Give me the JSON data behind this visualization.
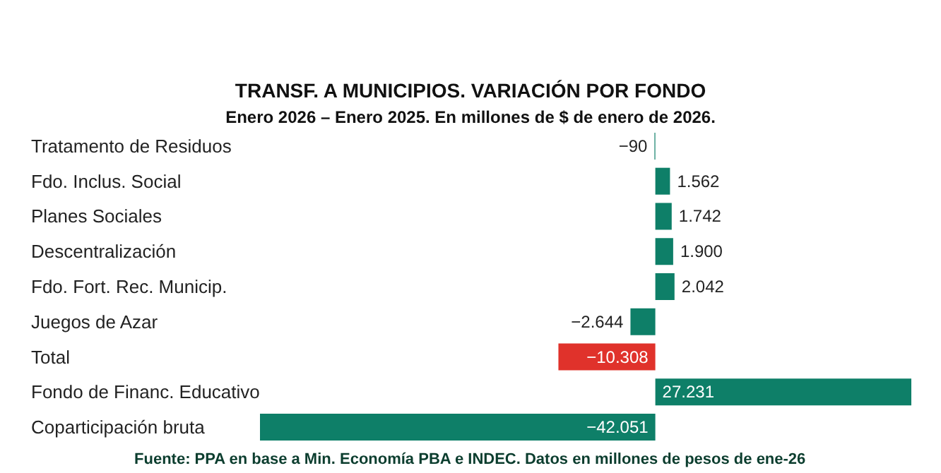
{
  "chart_data": {
    "type": "bar",
    "orientation": "horizontal",
    "title": "TRANSF. A MUNICIPIOS. VARIACIÓN POR FONDO",
    "subtitle": "Enero 2026 – Enero 2025. En millones de $ de enero de 2026.",
    "categories": [
      "Tratamento de Residuos",
      "Fdo. Inclus. Social",
      "Planes Sociales",
      "Descentralización",
      "Fdo. Fort. Rec. Municip.",
      "Juegos de Azar",
      "Total",
      "Fondo de Financ. Educativo",
      "Coparticipación bruta"
    ],
    "values": [
      -90,
      1562,
      1742,
      1900,
      2042,
      -2644,
      -10308,
      27231,
      -42051
    ],
    "colors": [
      "#0e7f68",
      "#0e7f68",
      "#0e7f68",
      "#0e7f68",
      "#0e7f68",
      "#0e7f68",
      "#e0322b",
      "#0e7f68",
      "#0e7f68"
    ],
    "value_labels": [
      "−90",
      "1.562",
      "1.742",
      "1.900",
      "2.042",
      "−2.644",
      "−10.308",
      "27.231",
      "−42.051"
    ],
    "annotations": [
      "Fuente: PPA en base a Min. Economía PBA e INDEC. Datos en millones de pesos de ene-26"
    ]
  }
}
